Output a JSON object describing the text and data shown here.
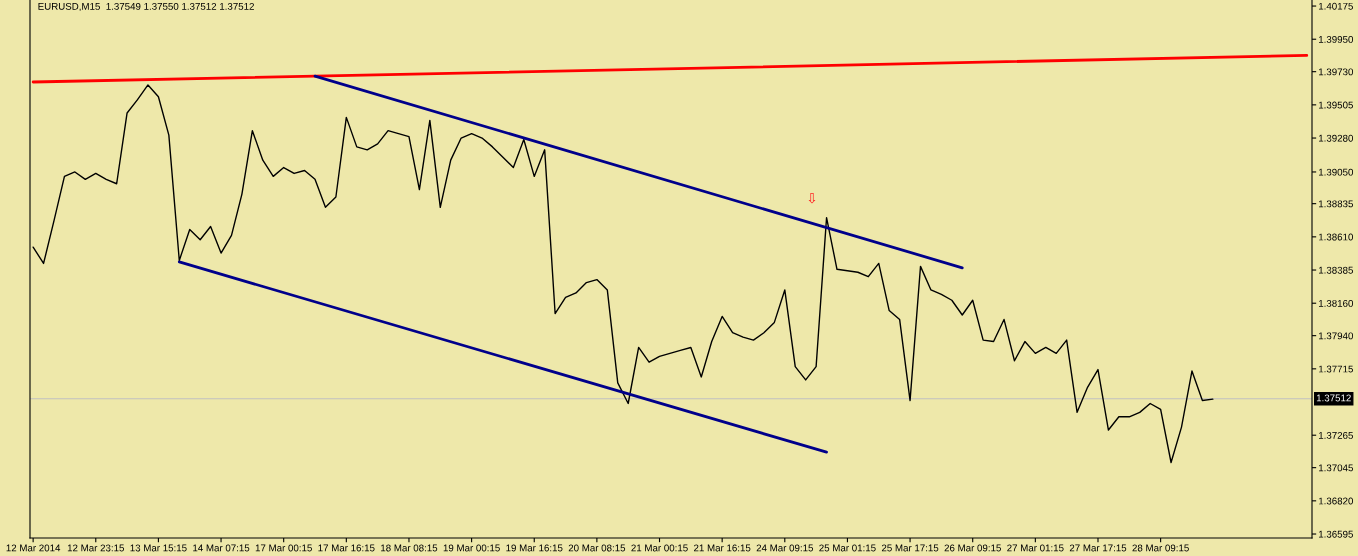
{
  "chart_data": {
    "type": "line",
    "title": "EURUSD,M15  1.37549 1.37550 1.37512 1.37512",
    "categories": [
      "12 Mar 2014",
      null,
      null,
      null,
      null,
      null,
      "12 Mar 23:15",
      null,
      null,
      null,
      null,
      null,
      "13 Mar 15:15",
      null,
      null,
      null,
      null,
      null,
      "14 Mar 07:15",
      null,
      null,
      null,
      null,
      null,
      "17 Mar 00:15",
      null,
      null,
      null,
      null,
      null,
      "17 Mar 16:15",
      null,
      null,
      null,
      null,
      null,
      "18 Mar 08:15",
      null,
      null,
      null,
      null,
      null,
      "19 Mar 00:15",
      null,
      null,
      null,
      null,
      null,
      "19 Mar 16:15",
      null,
      null,
      null,
      null,
      null,
      "20 Mar 08:15",
      null,
      null,
      null,
      null,
      null,
      "21 Mar 00:15",
      null,
      null,
      null,
      null,
      null,
      "21 Mar 16:15",
      null,
      null,
      null,
      null,
      null,
      "24 Mar 09:15",
      null,
      null,
      null,
      null,
      null,
      "25 Mar 01:15",
      null,
      null,
      null,
      null,
      null,
      "25 Mar 17:15",
      null,
      null,
      null,
      null,
      null,
      "26 Mar 09:15",
      null,
      null,
      null,
      null,
      null,
      "27 Mar 01:15",
      null,
      null,
      null,
      null,
      null,
      "27 Mar 17:15",
      null,
      null,
      null,
      null,
      null,
      "28 Mar 09:15",
      null,
      null,
      null,
      null,
      null,
      null,
      null,
      null,
      null,
      null,
      null,
      null,
      null,
      null
    ],
    "ylim": [
      1.36568,
      1.40216
    ],
    "yticks": [
      {
        "value": 1.40175,
        "label": "1.40175"
      },
      {
        "value": 1.3995,
        "label": "1.39950"
      },
      {
        "value": 1.3973,
        "label": "1.39730"
      },
      {
        "value": 1.39505,
        "label": "1.39505"
      },
      {
        "value": 1.3928,
        "label": "1.39280"
      },
      {
        "value": 1.3905,
        "label": "1.39050"
      },
      {
        "value": 1.38835,
        "label": "1.38835"
      },
      {
        "value": 1.3861,
        "label": "1.38610"
      },
      {
        "value": 1.38385,
        "label": "1.38385"
      },
      {
        "value": 1.3816,
        "label": "1.38160"
      },
      {
        "value": 1.3794,
        "label": "1.37940"
      },
      {
        "value": 1.37715,
        "label": "1.37715"
      },
      {
        "value": 1.37265,
        "label": "1.37265"
      },
      {
        "value": 1.37045,
        "label": "1.37045"
      },
      {
        "value": 1.3682,
        "label": "1.36820"
      },
      {
        "value": 1.36595,
        "label": "1.36595"
      }
    ],
    "series": [
      {
        "color": "#000000",
        "values": [
          1.3854,
          1.3843,
          1.3872,
          1.3902,
          1.3905,
          1.39,
          1.3904,
          1.39,
          1.3897,
          1.3945,
          1.3954,
          1.3964,
          1.3956,
          1.393,
          1.3845,
          1.3866,
          1.3859,
          1.3868,
          1.385,
          1.3862,
          1.389,
          1.3933,
          1.3913,
          1.3902,
          1.3908,
          1.3904,
          1.3906,
          1.39,
          1.3881,
          1.3888,
          1.3942,
          1.3922,
          1.392,
          1.3924,
          1.3933,
          1.3931,
          1.3929,
          1.3893,
          1.394,
          1.3881,
          1.3913,
          1.3928,
          1.3931,
          1.3928,
          1.3922,
          1.3915,
          1.3908,
          1.3927,
          1.3902,
          1.392,
          1.3809,
          1.382,
          1.3823,
          1.383,
          1.3832,
          1.3825,
          1.3762,
          1.3748,
          1.3786,
          1.3776,
          1.378,
          1.3782,
          1.3784,
          1.3786,
          1.3766,
          1.379,
          1.3807,
          1.3796,
          1.3793,
          1.3791,
          1.3796,
          1.3803,
          1.3825,
          1.3773,
          1.3764,
          1.3773,
          1.3874,
          1.3839,
          1.3838,
          1.3837,
          1.3834,
          1.3843,
          1.3811,
          1.3805,
          1.375,
          1.3841,
          1.3825,
          1.3822,
          1.3818,
          1.3808,
          1.3818,
          1.3791,
          1.379,
          1.3805,
          1.3777,
          1.379,
          1.3782,
          1.3786,
          1.3782,
          1.3791,
          1.3742,
          1.3759,
          1.3771,
          1.373,
          1.3739,
          1.3739,
          1.3742,
          1.3748,
          1.3744,
          1.3708,
          1.3732,
          1.377,
          1.375,
          1.3751,
          null,
          null,
          null,
          null,
          null,
          null,
          null,
          null,
          null
        ]
      },
      {
        "color": "#ff0000",
        "values": [
          1.3966,
          null,
          null,
          null,
          null,
          null,
          null,
          null,
          null,
          null,
          null,
          null,
          null,
          null,
          null,
          null,
          null,
          null,
          null,
          null,
          null,
          null,
          null,
          null,
          null,
          null,
          null,
          null,
          null,
          null,
          null,
          null,
          null,
          null,
          null,
          null,
          null,
          null,
          null,
          null,
          null,
          null,
          null,
          null,
          null,
          null,
          null,
          null,
          null,
          null,
          null,
          null,
          null,
          null,
          null,
          null,
          null,
          null,
          null,
          null,
          null,
          null,
          null,
          null,
          null,
          null,
          null,
          null,
          null,
          null,
          null,
          null,
          null,
          null,
          null,
          null,
          null,
          null,
          null,
          null,
          null,
          null,
          null,
          null,
          null,
          null,
          null,
          null,
          null,
          null,
          null,
          null,
          null,
          null,
          null,
          null,
          null,
          null,
          null,
          null,
          null,
          null,
          null,
          null,
          null,
          null,
          null,
          null,
          null,
          null,
          null,
          null,
          null,
          null,
          null,
          null,
          null,
          null,
          null,
          null,
          null,
          null,
          1.3984
        ]
      },
      {
        "color": "#00008b",
        "values": [
          null,
          null,
          null,
          null,
          null,
          null,
          null,
          null,
          null,
          null,
          null,
          null,
          null,
          null,
          null,
          null,
          null,
          null,
          null,
          null,
          null,
          null,
          null,
          null,
          null,
          null,
          null,
          1.397,
          null,
          null,
          null,
          null,
          null,
          null,
          null,
          null,
          null,
          null,
          null,
          null,
          null,
          null,
          null,
          null,
          null,
          null,
          null,
          null,
          null,
          null,
          null,
          null,
          null,
          null,
          null,
          null,
          null,
          null,
          null,
          null,
          null,
          null,
          null,
          null,
          null,
          null,
          null,
          null,
          null,
          null,
          null,
          null,
          null,
          null,
          null,
          null,
          null,
          null,
          null,
          null,
          null,
          null,
          null,
          null,
          null,
          null,
          null,
          null,
          null,
          1.384,
          null,
          null,
          null,
          null,
          null,
          null,
          null,
          null,
          null,
          null,
          null,
          null,
          null,
          null,
          null,
          null,
          null,
          null,
          null,
          null,
          null,
          null,
          null,
          null,
          null,
          null,
          null,
          null,
          null,
          null,
          null,
          null,
          null
        ]
      },
      {
        "color": "#00008b",
        "values": [
          null,
          null,
          null,
          null,
          null,
          null,
          null,
          null,
          null,
          null,
          null,
          null,
          null,
          null,
          1.3844,
          null,
          null,
          null,
          null,
          null,
          null,
          null,
          null,
          null,
          null,
          null,
          null,
          null,
          null,
          null,
          null,
          null,
          null,
          null,
          null,
          null,
          null,
          null,
          null,
          null,
          null,
          null,
          null,
          null,
          null,
          null,
          null,
          null,
          null,
          null,
          null,
          null,
          null,
          null,
          null,
          null,
          null,
          null,
          null,
          null,
          null,
          null,
          null,
          null,
          null,
          null,
          null,
          null,
          null,
          null,
          null,
          null,
          null,
          null,
          null,
          null,
          1.3715,
          null,
          null,
          null,
          null,
          null,
          null,
          null,
          null,
          null,
          null,
          null,
          null,
          null,
          null,
          null,
          null,
          null,
          null,
          null,
          null,
          null,
          null,
          null,
          null,
          null,
          null,
          null,
          null,
          null,
          null,
          null,
          null,
          null,
          null,
          null,
          null,
          null,
          null,
          null,
          null,
          null,
          null,
          null,
          null,
          null,
          null
        ]
      }
    ],
    "ref_lines": [
      {
        "axis": "y",
        "value": 1.37512,
        "label": "1.37512",
        "color": "#c0c0c0"
      }
    ],
    "annotations": [
      "⇩"
    ]
  }
}
